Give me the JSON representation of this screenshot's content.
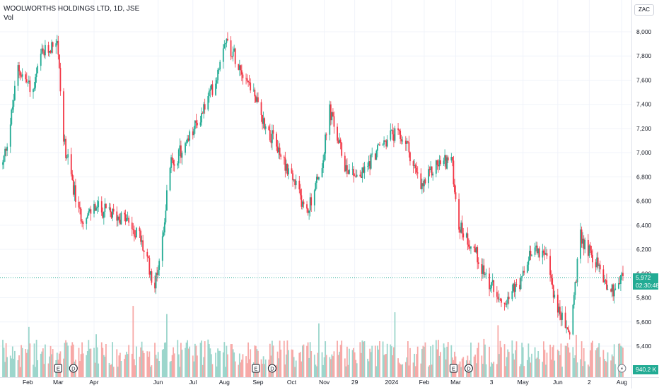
{
  "legend": {
    "symbol": "WOOLWORTHS HOLDINGS LTD, 1D, JSE",
    "volume_label": "Vol"
  },
  "unit": "ZAC",
  "last_price": {
    "value": "5,972",
    "countdown": "02:30:48"
  },
  "last_volume": "940.2 K",
  "colors": {
    "up": "#22ab94",
    "down": "#f23645",
    "up_vol": "#9cd6cc",
    "down_vol": "#f7a9a7",
    "grid": "#f0f3fa",
    "text": "#131722"
  },
  "events": [
    {
      "type": "earnings",
      "label": "E",
      "date": "2023-03-01"
    },
    {
      "type": "dividend",
      "label": "D",
      "date": "2023-03-15"
    },
    {
      "type": "earnings",
      "label": "E",
      "date": "2023-08-30"
    },
    {
      "type": "dividend",
      "label": "D",
      "date": "2023-09-14"
    },
    {
      "type": "earnings",
      "label": "E",
      "date": "2024-02-28"
    },
    {
      "type": "dividend",
      "label": "D",
      "date": "2024-03-13"
    },
    {
      "type": "split",
      "label": "⚡",
      "date": "2024-08-01"
    }
  ],
  "chart_data": {
    "type": "candlestick",
    "x_axis": {
      "start": "2023-01-09",
      "end": "2024-08-02",
      "tick_labels": [
        {
          "label": "Feb",
          "date": "2023-02-01"
        },
        {
          "label": "Mar",
          "date": "2023-03-01"
        },
        {
          "label": "Apr",
          "date": "2023-04-03"
        },
        {
          "label": "Jun",
          "date": "2023-06-01"
        },
        {
          "label": "Jul",
          "date": "2023-07-03"
        },
        {
          "label": "Aug",
          "date": "2023-08-01"
        },
        {
          "label": "Sep",
          "date": "2023-09-01"
        },
        {
          "label": "Oct",
          "date": "2023-10-02"
        },
        {
          "label": "Nov",
          "date": "2023-11-01"
        },
        {
          "label": "29",
          "date": "2023-11-29"
        },
        {
          "label": "2024",
          "date": "2024-01-02"
        },
        {
          "label": "Feb",
          "date": "2024-02-01"
        },
        {
          "label": "Mar",
          "date": "2024-03-01"
        },
        {
          "label": "3",
          "date": "2024-04-03"
        },
        {
          "label": "May",
          "date": "2024-05-02"
        },
        {
          "label": "Jun",
          "date": "2024-06-03"
        },
        {
          "label": "2",
          "date": "2024-07-02"
        },
        {
          "label": "Aug",
          "date": "2024-08-01"
        }
      ]
    },
    "y_axis": {
      "min": 5250,
      "max": 8250,
      "tick_labels": [
        "5,400",
        "5,600",
        "5,800",
        "6,000",
        "6,200",
        "6,400",
        "6,600",
        "6,800",
        "7,000",
        "7,200",
        "7,400",
        "7,600",
        "7,800",
        "8,000"
      ],
      "tick_values": [
        5400,
        5600,
        5800,
        6000,
        6200,
        6400,
        6600,
        6800,
        7000,
        7200,
        7400,
        7600,
        7800,
        8000
      ]
    },
    "close_path": [
      [
        "2023-01-09",
        6900
      ],
      [
        "2023-01-16",
        7250
      ],
      [
        "2023-01-23",
        7700
      ],
      [
        "2023-01-30",
        7600
      ],
      [
        "2023-02-06",
        7500
      ],
      [
        "2023-02-13",
        7800
      ],
      [
        "2023-02-20",
        7850
      ],
      [
        "2023-02-28",
        7950
      ],
      [
        "2023-03-06",
        7100
      ],
      [
        "2023-03-13",
        6800
      ],
      [
        "2023-03-20",
        6500
      ],
      [
        "2023-03-27",
        6450
      ],
      [
        "2023-04-03",
        6550
      ],
      [
        "2023-04-17",
        6500
      ],
      [
        "2023-05-02",
        6450
      ],
      [
        "2023-05-15",
        6300
      ],
      [
        "2023-05-22",
        6100
      ],
      [
        "2023-05-29",
        5900
      ],
      [
        "2023-06-05",
        6300
      ],
      [
        "2023-06-12",
        6900
      ],
      [
        "2023-06-26",
        7050
      ],
      [
        "2023-07-10",
        7300
      ],
      [
        "2023-07-24",
        7600
      ],
      [
        "2023-08-01",
        7950
      ],
      [
        "2023-08-14",
        7750
      ],
      [
        "2023-08-28",
        7500
      ],
      [
        "2023-09-04",
        7300
      ],
      [
        "2023-09-18",
        7050
      ],
      [
        "2023-10-02",
        6800
      ],
      [
        "2023-10-16",
        6500
      ],
      [
        "2023-10-30",
        6900
      ],
      [
        "2023-11-06",
        7350
      ],
      [
        "2023-11-20",
        6900
      ],
      [
        "2023-12-04",
        6800
      ],
      [
        "2023-12-18",
        7000
      ],
      [
        "2024-01-02",
        7150
      ],
      [
        "2024-01-15",
        7100
      ],
      [
        "2024-01-29",
        6700
      ],
      [
        "2024-02-12",
        6900
      ],
      [
        "2024-02-26",
        6950
      ],
      [
        "2024-03-04",
        6400
      ],
      [
        "2024-03-18",
        6200
      ],
      [
        "2024-04-02",
        5900
      ],
      [
        "2024-04-15",
        5800
      ],
      [
        "2024-04-29",
        5900
      ],
      [
        "2024-05-13",
        6250
      ],
      [
        "2024-05-24",
        6100
      ],
      [
        "2024-06-03",
        5700
      ],
      [
        "2024-06-14",
        5500
      ],
      [
        "2024-06-24",
        6300
      ],
      [
        "2024-07-08",
        6100
      ],
      [
        "2024-07-22",
        5850
      ],
      [
        "2024-08-02",
        5972
      ]
    ],
    "volume_range": {
      "min": 0,
      "max": 6500000
    }
  }
}
